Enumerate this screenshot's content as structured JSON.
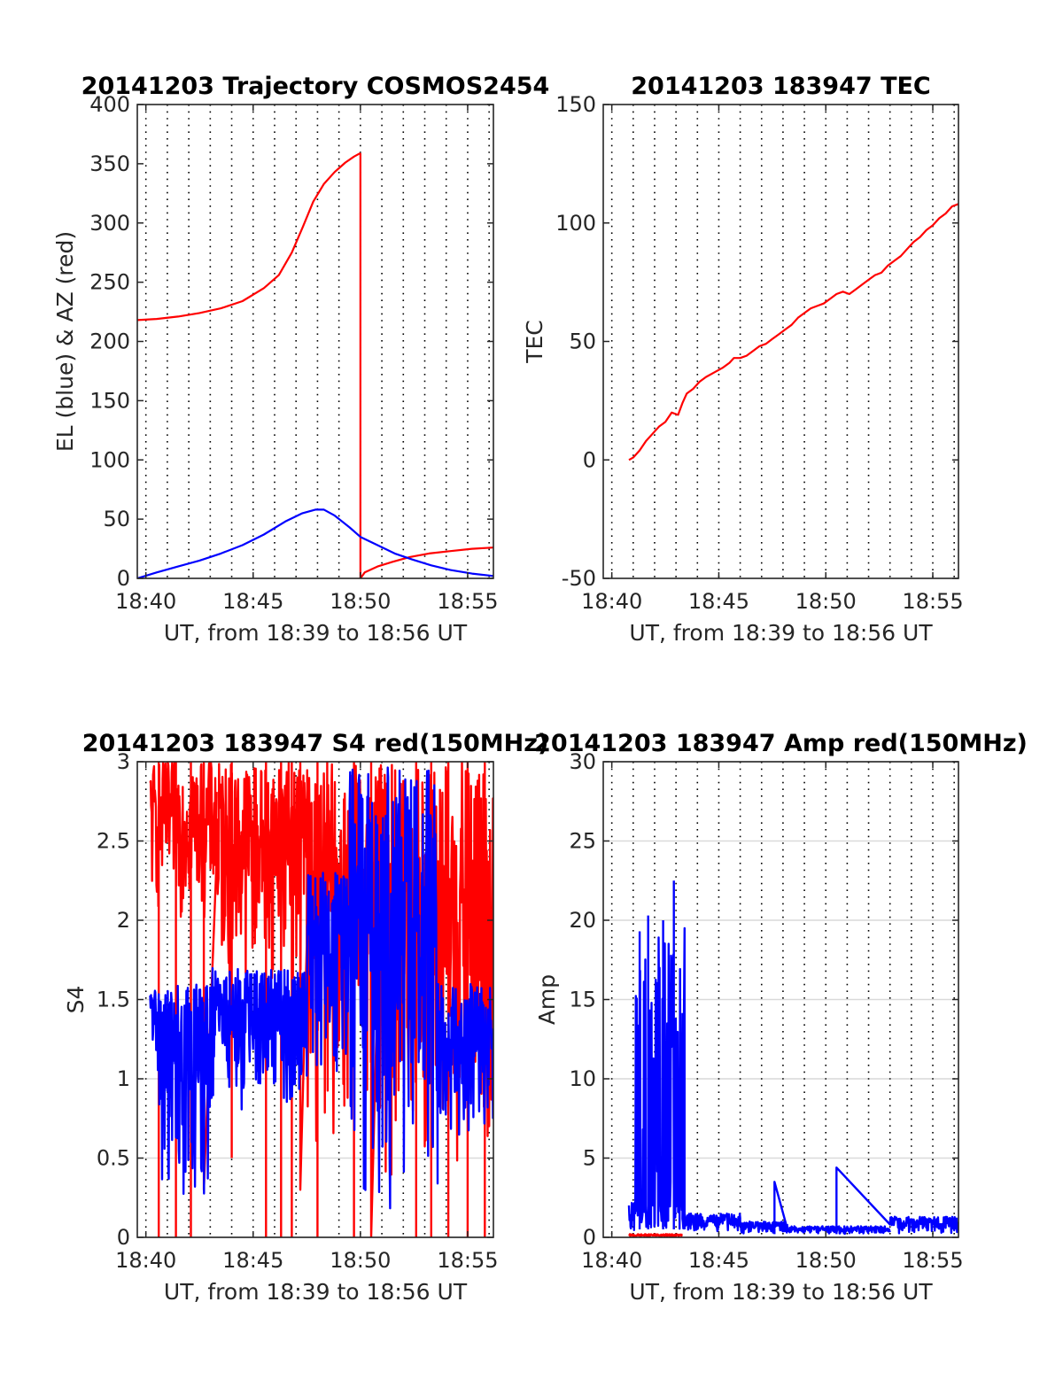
{
  "colors": {
    "red": "#ff0000",
    "blue": "#0000ff",
    "grid": "#000000",
    "axis": "#262626"
  },
  "chart_data": [
    {
      "id": "trajectory",
      "type": "line",
      "title": "20141203 Trajectory COSMOS2454",
      "xlabel": "UT, from 18:39 to 18:56 UT",
      "ylabel": "EL (blue) & AZ (red)",
      "xlim_min": [
        39.6,
        56.2
      ],
      "ylim": [
        0,
        400
      ],
      "xticks_min": [
        40,
        45,
        50,
        55
      ],
      "xtick_labels": [
        "18:40",
        "18:45",
        "18:50",
        "18:55"
      ],
      "yticks": [
        0,
        50,
        100,
        150,
        200,
        250,
        300,
        350,
        400
      ],
      "ytick_labels": [
        "0",
        "50",
        "100",
        "150",
        "200",
        "250",
        "300",
        "350",
        "400"
      ],
      "minor_grid_step_min": 1,
      "grid": "dotted vertical",
      "series": [
        {
          "color": "red",
          "segments": [
            [
              [
                39.6,
                218
              ],
              [
                40.5,
                219
              ],
              [
                41.5,
                221
              ],
              [
                42.5,
                224
              ],
              [
                43.5,
                228
              ],
              [
                44.5,
                234
              ],
              [
                45.5,
                245
              ],
              [
                46.2,
                256
              ],
              [
                46.8,
                275
              ],
              [
                47.3,
                296
              ],
              [
                47.8,
                318
              ],
              [
                48.3,
                333
              ],
              [
                48.8,
                343
              ],
              [
                49.3,
                351
              ],
              [
                49.7,
                356
              ],
              [
                50.0,
                359
              ]
            ],
            [
              [
                50.0,
                0
              ],
              [
                50.2,
                5
              ],
              [
                50.8,
                10
              ],
              [
                51.5,
                14
              ],
              [
                52.3,
                18
              ],
              [
                53.2,
                21
              ],
              [
                54.2,
                23
              ],
              [
                55.2,
                25
              ],
              [
                56.2,
                26
              ]
            ]
          ]
        },
        {
          "color": "blue",
          "segments": [
            [
              [
                39.6,
                0
              ],
              [
                40.5,
                5
              ],
              [
                41.5,
                10
              ],
              [
                42.5,
                15
              ],
              [
                43.5,
                21
              ],
              [
                44.5,
                28
              ],
              [
                45.5,
                37
              ],
              [
                46.5,
                48
              ],
              [
                47.3,
                55
              ],
              [
                47.9,
                58
              ],
              [
                48.3,
                58
              ],
              [
                48.8,
                53
              ],
              [
                49.5,
                43
              ],
              [
                50.0,
                35
              ],
              [
                50.8,
                28
              ],
              [
                51.6,
                21
              ],
              [
                52.4,
                16
              ],
              [
                53.3,
                11
              ],
              [
                54.2,
                7
              ],
              [
                55.2,
                4
              ],
              [
                56.2,
                2
              ]
            ]
          ]
        }
      ]
    },
    {
      "id": "tec",
      "type": "line",
      "title": "20141203 183947 TEC",
      "xlabel": "UT, from 18:39 to 18:56 UT",
      "ylabel": "TEC",
      "xlim_min": [
        39.6,
        56.2
      ],
      "ylim": [
        -50,
        150
      ],
      "xticks_min": [
        40,
        45,
        50,
        55
      ],
      "xtick_labels": [
        "18:40",
        "18:45",
        "18:50",
        "18:55"
      ],
      "yticks": [
        -50,
        0,
        50,
        100,
        150
      ],
      "ytick_labels": [
        "-50",
        "0",
        "50",
        "100",
        "150"
      ],
      "minor_grid_step_min": 1,
      "grid": "dotted vertical",
      "series": [
        {
          "color": "red",
          "segments": [
            [
              [
                40.8,
                0
              ],
              [
                41.0,
                1
              ],
              [
                41.3,
                4
              ],
              [
                41.6,
                8
              ],
              [
                41.9,
                11
              ],
              [
                42.2,
                14
              ],
              [
                42.5,
                16
              ],
              [
                42.8,
                20
              ],
              [
                43.1,
                19
              ],
              [
                43.3,
                24
              ],
              [
                43.5,
                28
              ],
              [
                43.8,
                30
              ],
              [
                44.1,
                33
              ],
              [
                44.4,
                35
              ],
              [
                44.8,
                37
              ],
              [
                45.2,
                39
              ],
              [
                45.5,
                41
              ],
              [
                45.7,
                43
              ],
              [
                46.0,
                43
              ],
              [
                46.3,
                44
              ],
              [
                46.6,
                46
              ],
              [
                46.9,
                48
              ],
              [
                47.2,
                49
              ],
              [
                47.5,
                51
              ],
              [
                47.8,
                53
              ],
              [
                48.1,
                55
              ],
              [
                48.4,
                57
              ],
              [
                48.7,
                60
              ],
              [
                49.0,
                62
              ],
              [
                49.3,
                64
              ],
              [
                49.6,
                65
              ],
              [
                49.9,
                66
              ],
              [
                50.2,
                68
              ],
              [
                50.5,
                70
              ],
              [
                50.8,
                71
              ],
              [
                51.1,
                70
              ],
              [
                51.4,
                72
              ],
              [
                51.7,
                74
              ],
              [
                52.0,
                76
              ],
              [
                52.3,
                78
              ],
              [
                52.6,
                79
              ],
              [
                52.9,
                82
              ],
              [
                53.2,
                84
              ],
              [
                53.5,
                86
              ],
              [
                53.8,
                89
              ],
              [
                54.1,
                92
              ],
              [
                54.4,
                94
              ],
              [
                54.7,
                97
              ],
              [
                55.0,
                99
              ],
              [
                55.3,
                102
              ],
              [
                55.6,
                104
              ],
              [
                55.9,
                107
              ],
              [
                56.2,
                108
              ]
            ]
          ]
        }
      ]
    },
    {
      "id": "s4",
      "type": "line",
      "title": "20141203 183947 S4 red(150MHz)",
      "xlabel": "UT, from 18:39 to 18:56 UT",
      "ylabel": "S4",
      "xlim_min": [
        39.6,
        56.2
      ],
      "ylim": [
        0,
        3
      ],
      "xticks_min": [
        40,
        45,
        50,
        55
      ],
      "xtick_labels": [
        "18:40",
        "18:45",
        "18:50",
        "18:55"
      ],
      "yticks": [
        0,
        0.5,
        1,
        1.5,
        2,
        2.5,
        3
      ],
      "ytick_labels": [
        "0",
        "0.5",
        "1",
        "1.5",
        "2",
        "2.5",
        "3"
      ],
      "minor_grid_step_min": 1,
      "grid": "dotted vertical with solid horizontal",
      "series": [
        {
          "color": "red",
          "style": "noisy",
          "bands": [
            {
              "x": [
                40.2,
                43.3
              ],
              "low": 2.0,
              "high": 3.0,
              "dips": [
                [
                  40.6,
                  0.0
                ],
                [
                  41.4,
                  0.0
                ],
                [
                  42.1,
                  0.0
                ],
                [
                  42.7,
                  0.3
                ]
              ]
            },
            {
              "x": [
                43.3,
                47.5
              ],
              "low": 1.6,
              "high": 3.0,
              "dips": [
                [
                  44.0,
                  0.5
                ],
                [
                  45.6,
                  0.0
                ],
                [
                  46.3,
                  0.0
                ],
                [
                  46.8,
                  0.0
                ],
                [
                  47.2,
                  0.3
                ]
              ]
            },
            {
              "x": [
                47.5,
                51.0
              ],
              "low": 0.5,
              "high": 3.0,
              "dips": [
                [
                  48.0,
                  0.0
                ],
                [
                  49.7,
                  0.0
                ],
                [
                  50.5,
                  0.0
                ]
              ]
            },
            {
              "x": [
                51.0,
                56.2
              ],
              "low": 0.2,
              "high": 3.0,
              "dips": [
                [
                  52.6,
                  0.0
                ],
                [
                  53.3,
                  0.0
                ],
                [
                  54.1,
                  0.0
                ],
                [
                  55.0,
                  0.0
                ],
                [
                  55.8,
                  0.0
                ]
              ]
            }
          ]
        },
        {
          "color": "blue",
          "style": "noisy",
          "bands": [
            {
              "x": [
                40.2,
                40.6
              ],
              "low": 1.0,
              "high": 1.6
            },
            {
              "x": [
                40.6,
                43.0
              ],
              "low": 0.2,
              "high": 1.6
            },
            {
              "x": [
                43.0,
                47.5
              ],
              "low": 0.8,
              "high": 1.7
            },
            {
              "x": [
                47.5,
                49.5
              ],
              "low": 1.0,
              "high": 2.3
            },
            {
              "x": [
                49.5,
                53.6
              ],
              "low": 0.0,
              "high": 3.0
            },
            {
              "x": [
                53.6,
                56.2
              ],
              "low": 0.6,
              "high": 1.6
            }
          ]
        }
      ]
    },
    {
      "id": "amp",
      "type": "line",
      "title": "20141203 183947 Amp red(150MHz)",
      "xlabel": "UT, from 18:39 to 18:56 UT",
      "ylabel": "Amp",
      "xlim_min": [
        39.6,
        56.2
      ],
      "ylim": [
        0,
        30
      ],
      "xticks_min": [
        40,
        45,
        50,
        55
      ],
      "xtick_labels": [
        "18:40",
        "18:45",
        "18:50",
        "18:55"
      ],
      "yticks": [
        0,
        5,
        10,
        15,
        20,
        25,
        30
      ],
      "ytick_labels": [
        "0",
        "5",
        "10",
        "15",
        "20",
        "25",
        "30"
      ],
      "minor_grid_step_min": 1,
      "grid": "dotted vertical with solid horizontal",
      "series": [
        {
          "color": "red",
          "style": "noisy",
          "bands": [
            {
              "x": [
                40.8,
                43.3
              ],
              "low": 0.0,
              "high": 0.2
            }
          ]
        },
        {
          "color": "blue",
          "style": "noisy",
          "bands": [
            {
              "x": [
                40.8,
                41.1
              ],
              "low": 0.3,
              "high": 2.2
            },
            {
              "x": [
                41.1,
                43.3
              ],
              "low": 0.5,
              "high": 19.0,
              "peaks": [
                [
                  41.3,
                  19.3
                ],
                [
                  41.7,
                  20.3
                ],
                [
                  42.4,
                  20.0
                ],
                [
                  42.9,
                  22.5
                ],
                [
                  43.4,
                  19.5
                ]
              ]
            },
            {
              "x": [
                43.3,
                46.0
              ],
              "low": 0.2,
              "high": 1.5
            },
            {
              "x": [
                46.0,
                48.2
              ],
              "low": 0.2,
              "high": 1.0,
              "peaks": [
                [
                  47.6,
                  3.5
                ]
              ]
            },
            {
              "x": [
                48.2,
                53.0
              ],
              "low": 0.2,
              "high": 0.7,
              "peaks": [
                [
                  50.5,
                  4.4
                ]
              ]
            },
            {
              "x": [
                53.0,
                56.2
              ],
              "low": 0.2,
              "high": 1.3
            }
          ]
        }
      ]
    }
  ]
}
